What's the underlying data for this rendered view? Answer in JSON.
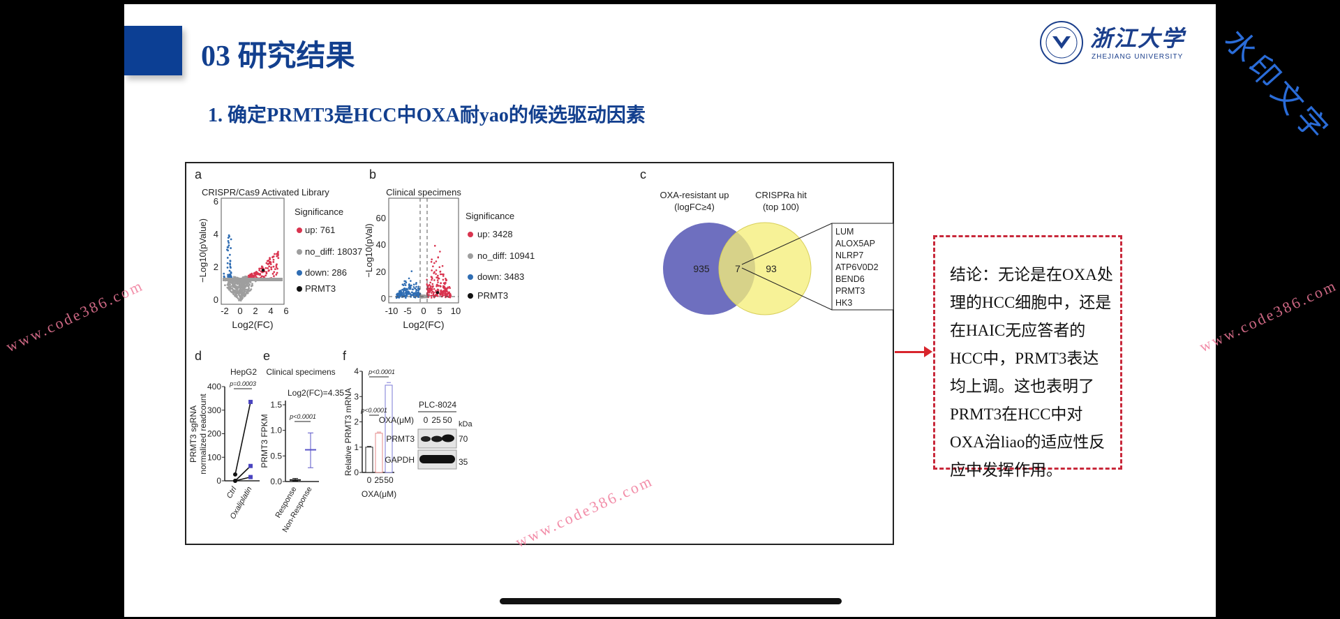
{
  "header": {
    "title": "03 研究结果",
    "subtitle": "1. 确定PRMT3是HCC中OXA耐yao的候选驱动因素",
    "logo": {
      "name": "浙江大学",
      "english": "ZHEJIANG UNIVERSITY"
    },
    "corner_watermark": "水印文字",
    "watermark": "www.code386.com"
  },
  "figure": {
    "a": {
      "label": "a",
      "title": "CRISPR/Cas9 Activated Library",
      "ylabel": "−Log10(pValue)",
      "xlabel": "Log2(FC)",
      "xticks": [
        "-2",
        "0",
        "2",
        "4",
        "6"
      ],
      "yticks": [
        "0",
        "2",
        "4",
        "6"
      ],
      "legend_title": "Significance",
      "legend": [
        "up: 761",
        "no_diff: 18037",
        "down: 286",
        "PRMT3"
      ]
    },
    "b": {
      "label": "b",
      "title": "Clinical specimens",
      "ylabel": "−Log10(pVal)",
      "xlabel": "Log2(FC)",
      "xticks": [
        "-10",
        "-5",
        "0",
        "5",
        "10"
      ],
      "yticks": [
        "0",
        "20",
        "40",
        "60"
      ],
      "legend_title": "Significance",
      "legend": [
        "up: 3428",
        "no_diff: 10941",
        "down: 3483",
        "PRMT3"
      ]
    },
    "c": {
      "label": "c",
      "left_title": "OXA-resistant up",
      "left_sub": "(logFC≥4)",
      "right_title": "CRISPRa hit",
      "right_sub": "(top 100)",
      "left_only": "935",
      "overlap": "7",
      "right_only": "93",
      "genes": [
        "LUM",
        "ALOX5AP",
        "NLRP7",
        "ATP6V0D2",
        "BEND6",
        "PRMT3",
        "HK3"
      ]
    },
    "d": {
      "label": "d",
      "title": "HepG2",
      "ylabel1": "PRMT3 sgRNA",
      "ylabel2": "normalized readcount",
      "yticks": [
        "0",
        "100",
        "200",
        "300",
        "400"
      ],
      "xticks": [
        "Ctrl",
        "Oxaliplatin"
      ],
      "pvalue": "p=0.0003"
    },
    "e": {
      "label": "e",
      "title": "Clinical specimens",
      "annotation": "Log2(FC)=4.35",
      "ylabel": "PRMT3 FPKM",
      "yticks": [
        "0.0",
        "0.5",
        "1.0",
        "1.5"
      ],
      "xticks": [
        "Response",
        "Non-Response"
      ],
      "pvalue": "p<0.0001"
    },
    "f": {
      "label": "f",
      "ylabel": "Relative PRMT3 mRNA",
      "xlabel": "OXA(μM)",
      "yticks": [
        "0",
        "1",
        "2",
        "3",
        "4"
      ],
      "xticks": [
        "0",
        "25",
        "50"
      ],
      "pvalue1": "p<0.0001",
      "pvalue2": "p<0.0001",
      "blot": {
        "cell_line": "PLC-8024",
        "treatment_label": "OXA(μM)",
        "lanes": [
          "0",
          "25",
          "50"
        ],
        "kda_label": "kDa",
        "rows": [
          {
            "name": "PRMT3",
            "kda": "70"
          },
          {
            "name": "GAPDH",
            "kda": "35"
          }
        ]
      }
    }
  },
  "conclusion": "结论：无论是在OXA处理的HCC细胞中，还是在HAIC无应答者的HCC中，PRMT3表达均上调。这也表明了PRMT3在HCC中对OXA治liao的适应性反应中发挥作用。",
  "colors": {
    "brand_blue": "#0c3f94",
    "up": "#d9344f",
    "no_diff": "#9e9e9e",
    "down": "#2f6db3",
    "venn_left": "#6e6fbf",
    "venn_right": "#f5ee7a",
    "conclusion_border": "#c8283a"
  },
  "chart_data": [
    {
      "type": "scatter",
      "title": "CRISPR/Cas9 Activated Library",
      "xlabel": "Log2(FC)",
      "ylabel": "−Log10(pValue)",
      "xlim": [
        -3,
        6.5
      ],
      "ylim": [
        0,
        6
      ],
      "series": [
        {
          "name": "up",
          "count": 761
        },
        {
          "name": "no_diff",
          "count": 18037
        },
        {
          "name": "down",
          "count": 286
        },
        {
          "name": "PRMT3",
          "points": [
            [
              3,
              1.9
            ]
          ]
        }
      ],
      "legend": "right"
    },
    {
      "type": "scatter",
      "title": "Clinical specimens",
      "xlabel": "Log2(FC)",
      "ylabel": "−Log10(pVal)",
      "xlim": [
        -11,
        11
      ],
      "ylim": [
        0,
        65
      ],
      "series": [
        {
          "name": "up",
          "count": 3428
        },
        {
          "name": "no_diff",
          "count": 10941
        },
        {
          "name": "down",
          "count": 3483
        },
        {
          "name": "PRMT3",
          "points": [
            [
              4.35,
              4
            ]
          ]
        }
      ],
      "legend": "right"
    },
    {
      "type": "line",
      "title": "HepG2",
      "categories": [
        "Ctrl",
        "Oxaliplatin"
      ],
      "ylim": [
        0,
        400
      ],
      "pairs": [
        [
          27,
          335
        ],
        [
          0,
          63
        ],
        [
          0,
          16
        ]
      ]
    },
    {
      "type": "scatter",
      "title": "Clinical specimens",
      "categories": [
        "Response",
        "Non-Response"
      ],
      "ylim": [
        0,
        1.5
      ],
      "series": [
        {
          "name": "Response",
          "mean": 0.03,
          "range": [
            0.01,
            0.06
          ]
        },
        {
          "name": "Non-Response",
          "mean": 0.62,
          "range": [
            0.27,
            0.95
          ]
        }
      ]
    },
    {
      "type": "bar",
      "categories": [
        "0",
        "25",
        "50"
      ],
      "values": [
        1.0,
        1.55,
        3.45
      ],
      "ylim": [
        0,
        4
      ],
      "xlabel": "OXA(μM)",
      "ylabel": "Relative PRMT3 mRNA"
    }
  ]
}
